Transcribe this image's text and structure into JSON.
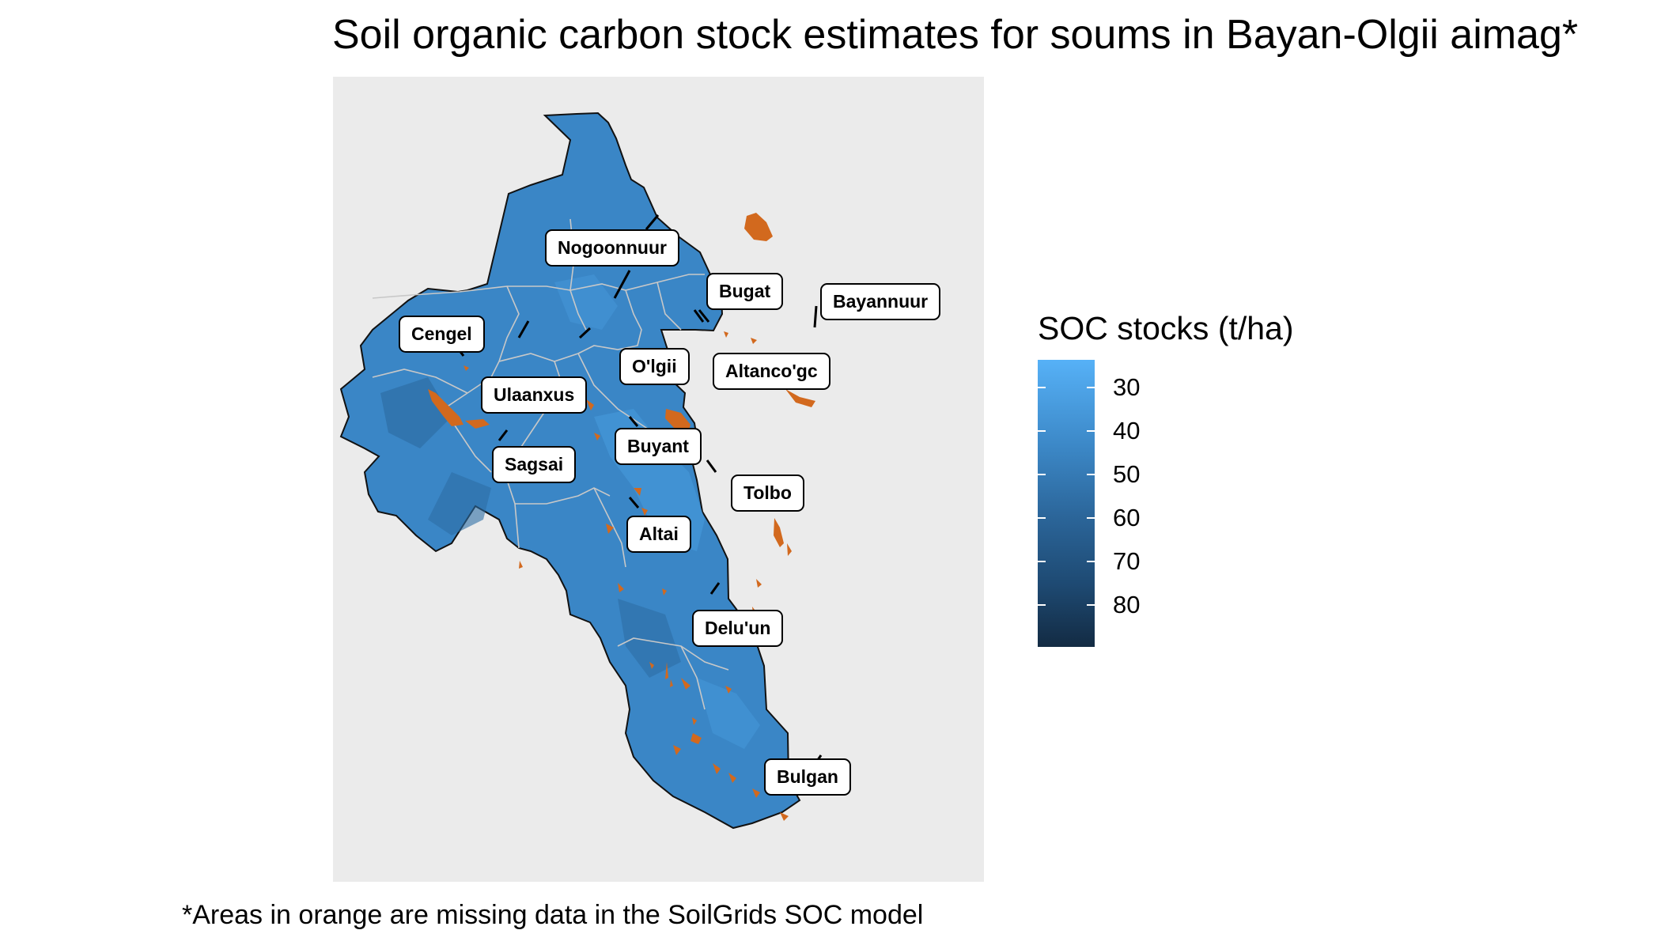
{
  "title": "Soil organic carbon stock estimates for soums in Bayan-Olgii aimag*",
  "caption": "*Areas in orange are missing data in the SoilGrids SOC model",
  "legend": {
    "title": "SOC stocks (t/ha)",
    "ticks": [
      "30",
      "40",
      "50",
      "60",
      "70",
      "80"
    ],
    "range": [
      25,
      90
    ],
    "color_low": "#56b1f7",
    "color_high": "#132b43"
  },
  "colors": {
    "panel_background": "#ebebeb",
    "soc_fill": "#3a86c6",
    "missing_data": "#d2691e",
    "soum_border": "#c8c8c8"
  },
  "soums": [
    "Nogoonnuur",
    "Bugat",
    "Bayannuur",
    "Cengel",
    "O'lgii",
    "Altanco'gc",
    "Ulaanxus",
    "Buyant",
    "Sagsai",
    "Tolbo",
    "Altai",
    "Delu'un",
    "Bulgan"
  ]
}
